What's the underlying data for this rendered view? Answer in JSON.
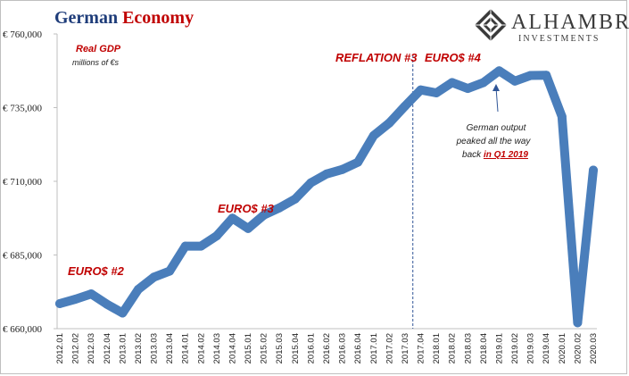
{
  "title": {
    "part1": "German",
    "part2": "Economy"
  },
  "brand": {
    "name": "ALHAMBRA",
    "sub": "INVESTMENTS"
  },
  "colors": {
    "line": "#4a7ebb",
    "title_blue": "#1f3d7a",
    "accent_red": "#c00000",
    "divider": "#2f5597"
  },
  "chart_data": {
    "type": "line",
    "title": "Real GDP",
    "subtitle": "millions of €s",
    "ylim": [
      660000,
      760000
    ],
    "y_ticks": [
      660000,
      685000,
      710000,
      735000,
      760000
    ],
    "y_tick_labels": [
      "€ 660,000",
      "€ 685,000",
      "€ 710,000",
      "€ 735,000",
      "€ 760,000"
    ],
    "categories": [
      "2012.01",
      "2012.02",
      "2012.03",
      "2012.04",
      "2013.01",
      "2013.02",
      "2013.03",
      "2013.04",
      "2014.01",
      "2014.02",
      "2014.03",
      "2014.04",
      "2015.01",
      "2015.02",
      "2015.03",
      "2015.04",
      "2016.01",
      "2016.02",
      "2016.03",
      "2016.04",
      "2017.01",
      "2017.02",
      "2017.03",
      "2017.04",
      "2018.01",
      "2018.02",
      "2018.03",
      "2018.04",
      "2019.01",
      "2019.02",
      "2019.03",
      "2019.04",
      "2020.01",
      "2020.02",
      "2020.03"
    ],
    "series": [
      {
        "values": [
          668500,
          670000,
          671800,
          668300,
          665300,
          673300,
          677500,
          679500,
          688000,
          688000,
          691500,
          697500,
          694000,
          698500,
          701000,
          704000,
          709500,
          712500,
          714000,
          716500,
          725500,
          729800,
          735500,
          741000,
          740000,
          743500,
          741500,
          743500,
          747500,
          744000,
          745900,
          746000,
          732000,
          662000,
          713800
        ]
      }
    ],
    "annotations": {
      "euros2": "EURO$ #2",
      "euros3": "EURO$ #3",
      "reflation3": "REFLATION #3",
      "euros4": "EURO$ #4",
      "note_line1": "German output",
      "note_line2": "peaked all the way",
      "note_line3_prefix": "back ",
      "note_line3_link": "in Q1 2019"
    },
    "divider_after_category": "2017.03",
    "grid": false
  }
}
